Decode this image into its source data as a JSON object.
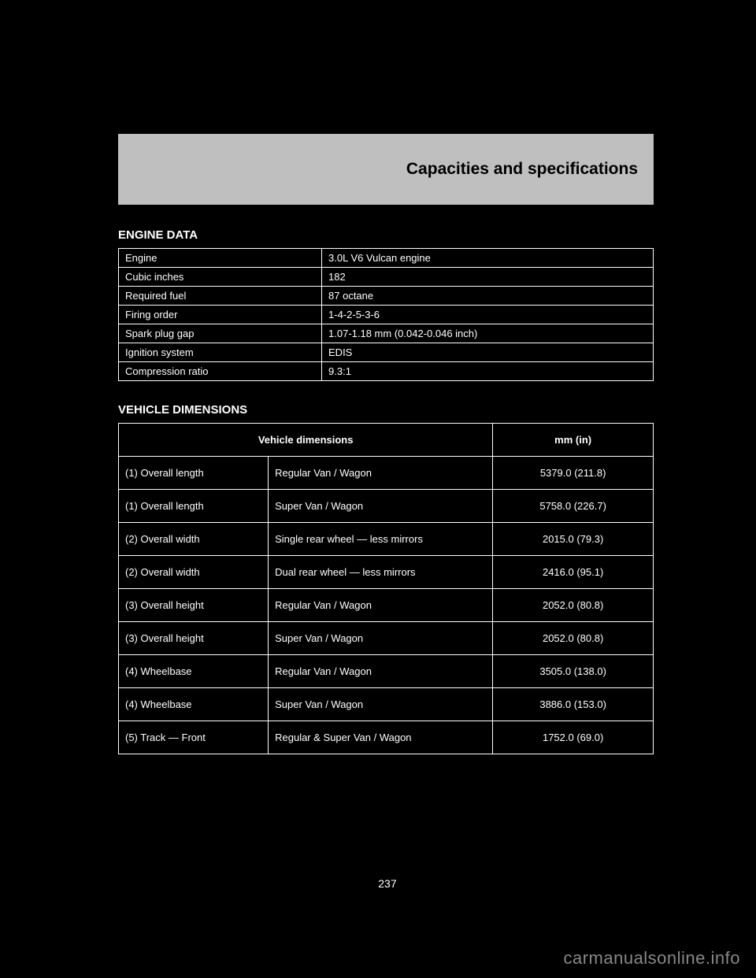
{
  "header": {
    "title": "Capacities and specifications"
  },
  "table1": {
    "title": "ENGINE DATA",
    "rows": [
      {
        "label": "Engine",
        "value": "3.0L V6 Vulcan engine"
      },
      {
        "label": "Cubic inches",
        "value": "182"
      },
      {
        "label": "Required fuel",
        "value": "87 octane"
      },
      {
        "label": "Firing order",
        "value": "1-4-2-5-3-6"
      },
      {
        "label": "Spark plug gap",
        "value": "1.07-1.18 mm (0.042-0.046 inch)"
      },
      {
        "label": "Ignition system",
        "value": "EDIS"
      },
      {
        "label": "Compression ratio",
        "value": "9.3:1"
      }
    ]
  },
  "table2": {
    "title": "VEHICLE DIMENSIONS",
    "columns": [
      "Vehicle dimensions",
      "mm (in)"
    ],
    "rows": [
      {
        "dim": "(1) Overall length",
        "spec": "Regular Van / Wagon",
        "val": "5379.0 (211.8)"
      },
      {
        "dim": "(1) Overall length",
        "spec": "Super Van / Wagon",
        "val": "5758.0 (226.7)"
      },
      {
        "dim": "(2) Overall width",
        "spec": "Single rear wheel — less mirrors",
        "val": "2015.0 (79.3)"
      },
      {
        "dim": "(2) Overall width",
        "spec": "Dual rear wheel — less mirrors",
        "val": "2416.0 (95.1)"
      },
      {
        "dim": "(3) Overall height",
        "spec": "Regular Van / Wagon",
        "val": "2052.0 (80.8)"
      },
      {
        "dim": "(3) Overall height",
        "spec": "Super Van / Wagon",
        "val": "2052.0 (80.8)"
      },
      {
        "dim": "(4) Wheelbase",
        "spec": "Regular Van / Wagon",
        "val": "3505.0 (138.0)"
      },
      {
        "dim": "(4) Wheelbase",
        "spec": "Super Van / Wagon",
        "val": "3886.0 (153.0)"
      },
      {
        "dim": "(5) Track — Front",
        "spec": "Regular & Super Van / Wagon",
        "val": "1752.0 (69.0)"
      }
    ]
  },
  "page_number": "237",
  "watermark": "carmanualsonline.info"
}
